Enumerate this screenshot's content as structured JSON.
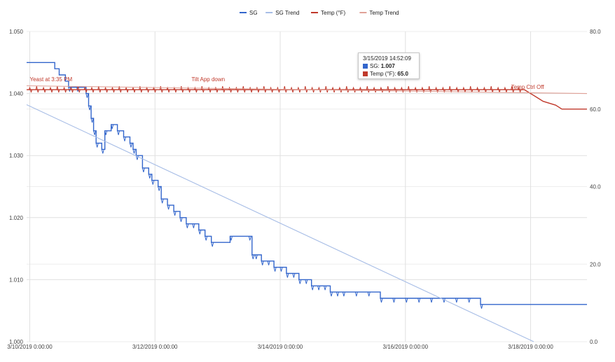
{
  "chart_data": {
    "type": "line",
    "legend": {
      "placement": "top-center",
      "items": [
        {
          "name": "SG",
          "color": "#3366cc"
        },
        {
          "name": "SG Trend",
          "color": "#a7bde6"
        },
        {
          "name": "Temp (°F)",
          "color": "#c0392b"
        },
        {
          "name": "Temp Trend",
          "color": "#e0a197"
        }
      ]
    },
    "x_axis": {
      "ticks": [
        "3/10/2019 0:00:00",
        "3/12/2019 0:00:00",
        "3/14/2019 0:00:00",
        "3/16/2019 0:00:00",
        "3/18/2019 0:00:00"
      ],
      "range_days": [
        9.95,
        18.9
      ]
    },
    "y_left": {
      "ticks": [
        "1.000",
        "1.010",
        "1.020",
        "1.030",
        "1.040",
        "1.050"
      ],
      "range": [
        1.0,
        1.05
      ]
    },
    "y_right": {
      "ticks": [
        "0.0",
        "20.0",
        "40.0",
        "60.0",
        "80.0"
      ],
      "range": [
        0,
        80
      ]
    },
    "grid": true,
    "series": [
      {
        "name": "SG",
        "axis": "left",
        "color": "#3366cc",
        "x": [
          9.95,
          10.17,
          10.2,
          10.35,
          10.4,
          10.47,
          10.52,
          10.57,
          10.62,
          10.75,
          10.9,
          10.94,
          10.98,
          11.02,
          11.06,
          11.15,
          11.2,
          11.3,
          11.4,
          11.5,
          11.6,
          11.65,
          11.7,
          11.8,
          11.9,
          11.95,
          12.05,
          12.1,
          12.2,
          12.3,
          12.4,
          12.5,
          12.6,
          12.7,
          12.8,
          12.9,
          13.2,
          13.5,
          13.55,
          13.6,
          13.7,
          13.8,
          13.9,
          14.0,
          14.1,
          14.2,
          14.3,
          14.4,
          14.5,
          14.6,
          14.7,
          14.8,
          14.9,
          15.0,
          15.2,
          15.4,
          15.6,
          15.8,
          16.0,
          16.2,
          16.4,
          16.6,
          16.8,
          17.0,
          17.2,
          18.0,
          18.9
        ],
        "y": [
          1.045,
          1.045,
          1.045,
          1.045,
          1.044,
          1.043,
          1.043,
          1.042,
          1.041,
          1.041,
          1.04,
          1.038,
          1.036,
          1.034,
          1.032,
          1.031,
          1.034,
          1.035,
          1.034,
          1.033,
          1.032,
          1.031,
          1.03,
          1.028,
          1.027,
          1.026,
          1.025,
          1.023,
          1.022,
          1.021,
          1.02,
          1.019,
          1.019,
          1.018,
          1.017,
          1.016,
          1.017,
          1.017,
          1.014,
          1.014,
          1.013,
          1.013,
          1.012,
          1.012,
          1.011,
          1.011,
          1.01,
          1.01,
          1.009,
          1.009,
          1.009,
          1.008,
          1.008,
          1.008,
          1.008,
          1.008,
          1.007,
          1.007,
          1.007,
          1.007,
          1.007,
          1.007,
          1.007,
          1.007,
          1.006,
          1.006,
          1.006
        ]
      },
      {
        "name": "SG Trend",
        "axis": "left",
        "color": "#a7bde6",
        "x": [
          9.95,
          18.05
        ],
        "y": [
          1.0382,
          1.0
        ]
      },
      {
        "name": "Temp (°F)",
        "axis": "right",
        "color": "#c0392b",
        "x": [
          9.95,
          10.3,
          10.6,
          11.0,
          11.5,
          12.0,
          12.5,
          13.0,
          13.5,
          14.0,
          14.5,
          15.0,
          15.5,
          16.0,
          16.5,
          17.0,
          17.5,
          17.9,
          18.0,
          18.1,
          18.2,
          18.4,
          18.5,
          18.9
        ],
        "y": [
          65.0,
          65.0,
          65.0,
          65.0,
          65.0,
          65.0,
          65.0,
          65.0,
          65.0,
          65.0,
          65.0,
          65.0,
          65.0,
          65.0,
          65.0,
          65.0,
          65.0,
          65.0,
          64.0,
          63.0,
          62.0,
          61.0,
          60.0,
          60.0
        ]
      },
      {
        "name": "Temp Trend",
        "axis": "right",
        "color": "#e0a197",
        "x": [
          9.95,
          18.9
        ],
        "y": [
          66.0,
          64.0
        ]
      }
    ],
    "annotations": [
      {
        "text": "Yeast at 3:35 PM",
        "x": 10.0,
        "y_right": 66.5
      },
      {
        "text": "Tilt App down",
        "x": 12.85,
        "y_right": 66.5
      },
      {
        "text": "Temp Ctrl Off",
        "x": 17.95,
        "y_right": 64.5
      }
    ],
    "tooltip": {
      "title": "3/15/2019 14:52:09",
      "rows": [
        {
          "label": "SG:",
          "value": "1.007",
          "color": "#3366cc"
        },
        {
          "label": "Temp (°F):",
          "value": "65.0",
          "color": "#c0392b"
        }
      ]
    }
  }
}
